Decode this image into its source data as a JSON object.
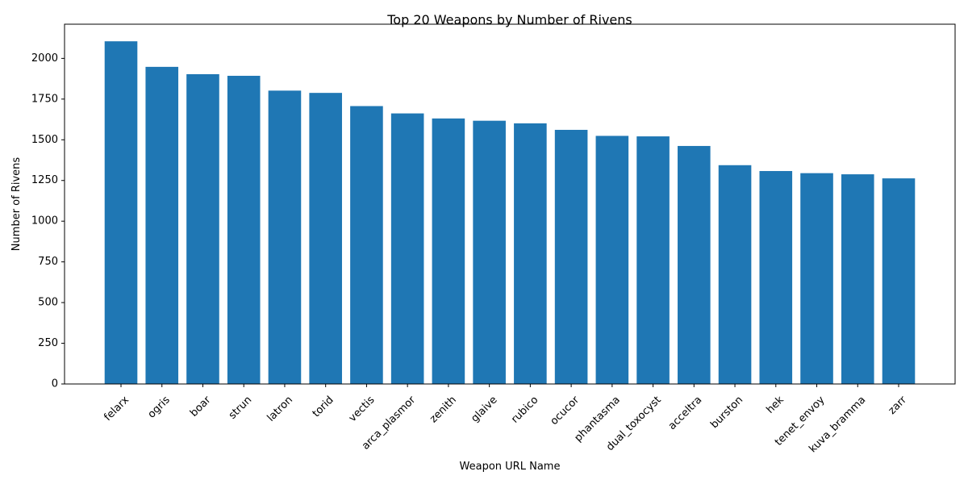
{
  "chart_data": {
    "type": "bar",
    "title": "Top 20 Weapons by Number of Rivens",
    "xlabel": "Weapon URL Name",
    "ylabel": "Number of Rivens",
    "categories": [
      "felarx",
      "ogris",
      "boar",
      "strun",
      "latron",
      "torid",
      "vectis",
      "arca_plasmor",
      "zenith",
      "glaive",
      "rubico",
      "ocucor",
      "phantasma",
      "dual_toxocyst",
      "acceltra",
      "burston",
      "hek",
      "tenet_envoy",
      "kuva_bramma",
      "zarr"
    ],
    "values": [
      2105,
      1948,
      1903,
      1893,
      1802,
      1788,
      1707,
      1662,
      1631,
      1617,
      1601,
      1561,
      1524,
      1521,
      1462,
      1344,
      1308,
      1295,
      1288,
      1263
    ],
    "yticks": [
      0,
      250,
      500,
      750,
      1000,
      1250,
      1500,
      1750,
      2000
    ],
    "ylim": [
      0,
      2210
    ],
    "grid": false,
    "legend": false,
    "colors": {
      "bar": "#1f77b4"
    }
  }
}
